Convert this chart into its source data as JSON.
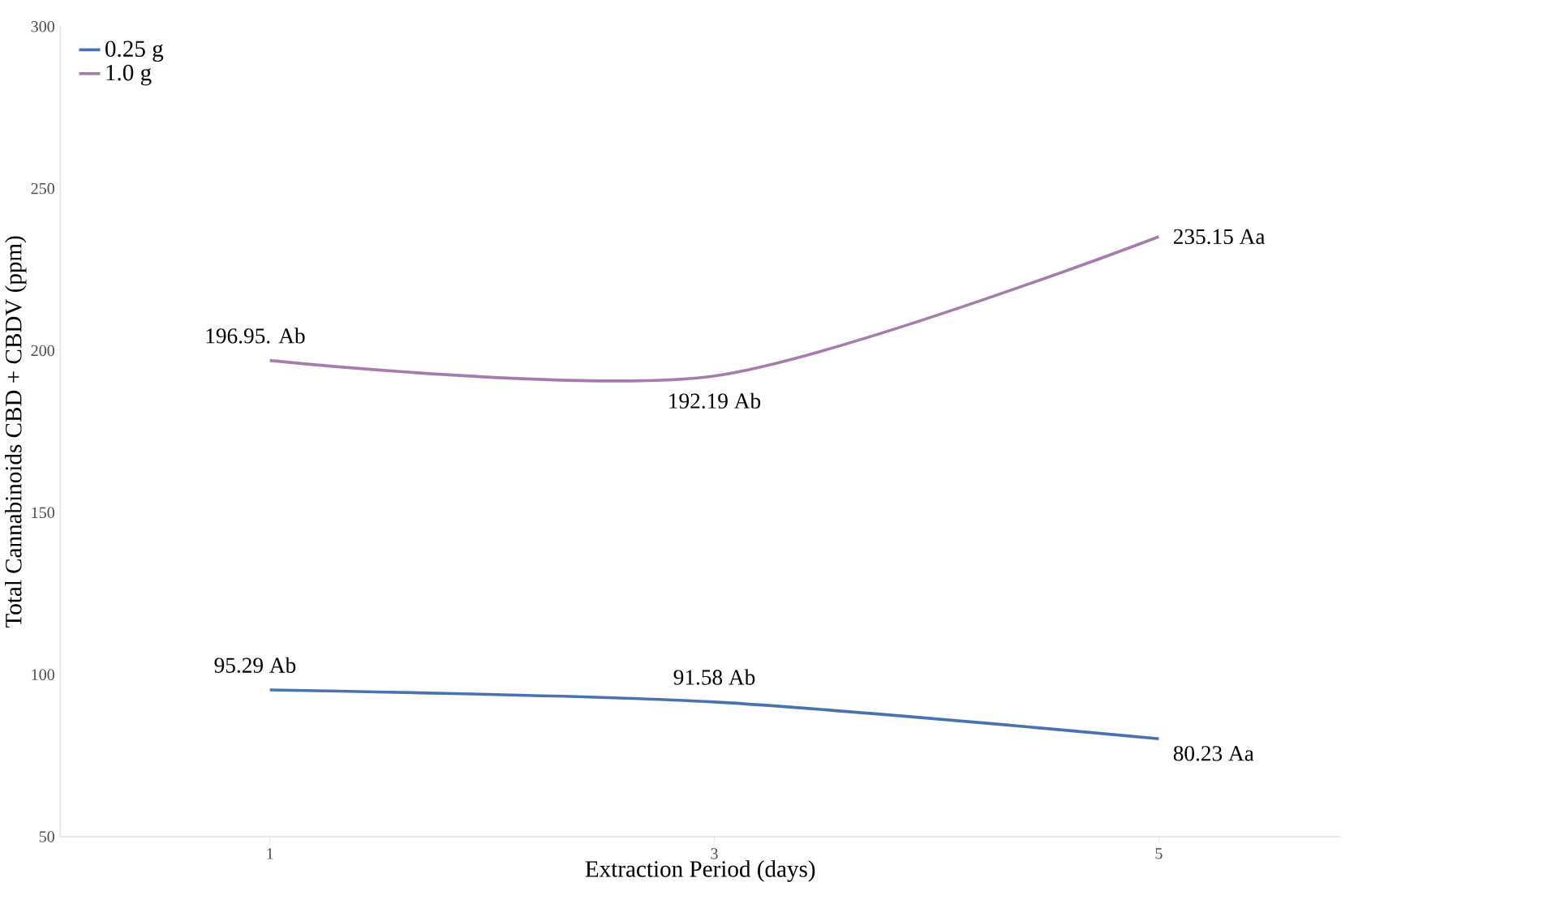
{
  "chart_data": {
    "type": "line",
    "xlabel": "Extraction Period (days)",
    "ylabel": "Total Cannabinoids CBD + CBDV (ppm)",
    "categories": [
      "1",
      "3",
      "5"
    ],
    "series": [
      {
        "name": "0.25 g",
        "color": "#4a72b0",
        "values": [
          95.29,
          91.58,
          80.23
        ],
        "value_labels": [
          "95.29 Ab",
          "91.58 Ab",
          "80.23 Aa"
        ]
      },
      {
        "name": "1.0 g",
        "color": "#a77bb0",
        "values": [
          196.95,
          192.19,
          235.15
        ],
        "value_labels": [
          "196.95. Ab",
          "192.19 Ab",
          "235.15 Aa"
        ]
      }
    ],
    "ylim": [
      50,
      300
    ],
    "yticks": [
      50,
      100,
      150,
      200,
      250,
      300
    ],
    "grid": false,
    "legend": "top left",
    "marker": "none",
    "line_style": "solid"
  }
}
